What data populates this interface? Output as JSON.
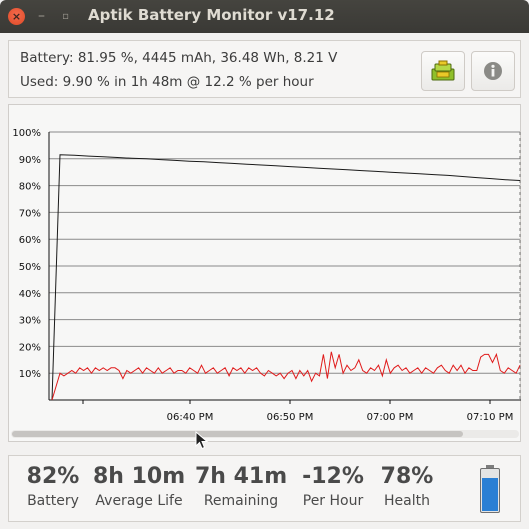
{
  "window": {
    "title": "Aptik Battery Monitor v17.12"
  },
  "info": {
    "battery_line": "Battery: 81.95 %, 4445 mAh, 36.48 Wh, 8.21 V",
    "used_line": "Used: 9.90 % in 1h 48m @ 12.2 % per hour"
  },
  "toolbar": {
    "stats_icon": "battery-stats-icon",
    "about_icon": "info-icon"
  },
  "chart_data": {
    "type": "line",
    "y_ticks": [
      "100%",
      "90%",
      "80%",
      "70%",
      "60%",
      "50%",
      "40%",
      "30%",
      "20%",
      "10%"
    ],
    "ylim": [
      0,
      100
    ],
    "x_ticks": [
      "06:40 PM",
      "06:50 PM",
      "07:00 PM",
      "07:10 PM"
    ],
    "grid": true,
    "series": [
      {
        "color": "#1a1a1a",
        "values": [
          0,
          91.5,
          91.3,
          91,
          90.8,
          90.5,
          90.2,
          90,
          89.7,
          89.4,
          89.1,
          88.9,
          88.6,
          88.3,
          88,
          87.7,
          87.4,
          87.1,
          86.8,
          86.5,
          86.2,
          85.9,
          85.6,
          85.3,
          85,
          84.7,
          84.4,
          84.1,
          83.8,
          83.4,
          83,
          82.6,
          82.2,
          81.9
        ]
      },
      {
        "color": "#e01b1b",
        "values": [
          0,
          10,
          9,
          10,
          11,
          10,
          12,
          11,
          12,
          10,
          12,
          11,
          12,
          11,
          12,
          12,
          11,
          8,
          11,
          10,
          11,
          12,
          10,
          12,
          11,
          10,
          12,
          10,
          11,
          12,
          10,
          11,
          11,
          10,
          12,
          11,
          10,
          13,
          10,
          11,
          12,
          10,
          11,
          12,
          9,
          12,
          11,
          12,
          10,
          12,
          11,
          12,
          10,
          9,
          11,
          10,
          9,
          10,
          8,
          10,
          11,
          8,
          11,
          9,
          11,
          7,
          10,
          9,
          17,
          8,
          18,
          12,
          17,
          10,
          13,
          11,
          12,
          15,
          11,
          10,
          12,
          11,
          13,
          9,
          15,
          10,
          12,
          13,
          11,
          12,
          10,
          11,
          12,
          10,
          12,
          11,
          10,
          12,
          13,
          11,
          10,
          13,
          11,
          13,
          10,
          12,
          11,
          11,
          16,
          17,
          17,
          14,
          17,
          11,
          10,
          12,
          11,
          10,
          13
        ]
      }
    ]
  },
  "stats": [
    {
      "value": "82%",
      "label": "Battery"
    },
    {
      "value": "8h 10m",
      "label": "Average Life"
    },
    {
      "value": "7h 41m",
      "label": "Remaining"
    },
    {
      "value": "-12%",
      "label": "Per Hour"
    },
    {
      "value": "78%",
      "label": "Health"
    }
  ],
  "colors": {
    "charge_line": "#1a1a1a",
    "rate_line": "#e01b1b",
    "battery_fill": "#2a7fd4"
  }
}
